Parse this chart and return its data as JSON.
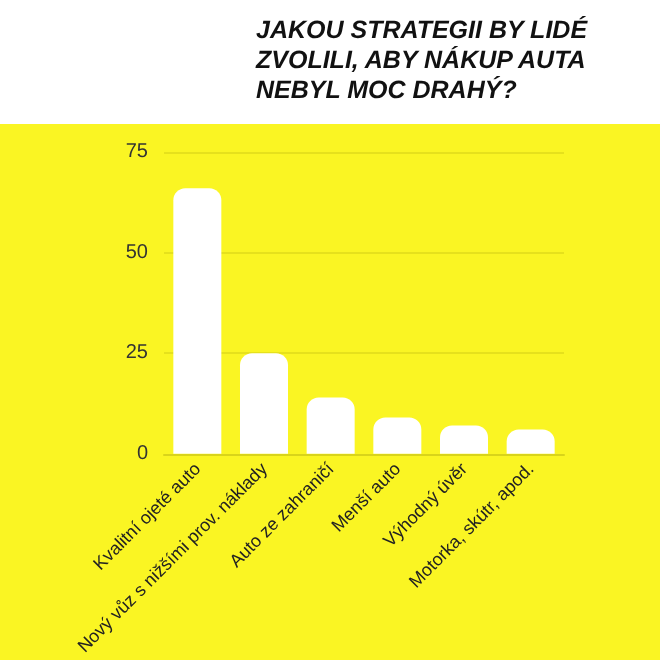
{
  "chart_data": {
    "type": "bar",
    "title": "JAKOU STRATEGII BY LIDÉ ZVOLILI, ABY NÁKUP AUTA NEBYL MOC DRAHÝ?",
    "categories": [
      "Kvalitní ojeté auto",
      "Nový vůz s nižšími prov. náklady",
      "Auto ze zahraničí",
      "Menší auto",
      "Výhodný úvěr",
      "Motorka, skútr, apod."
    ],
    "values": [
      66,
      25,
      14,
      9,
      7,
      6
    ],
    "color": "#ffffff",
    "ylim": [
      0,
      75
    ],
    "yticks": [
      0,
      25,
      50,
      75
    ],
    "grid": "y"
  }
}
